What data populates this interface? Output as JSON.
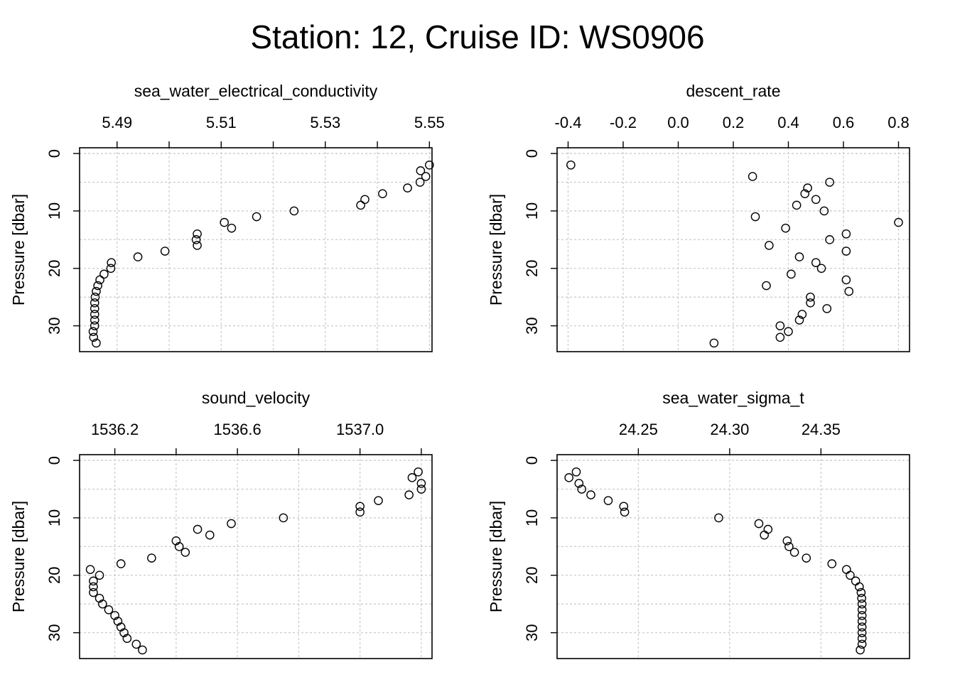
{
  "title": "Station: 12, Cruise ID: WS0906",
  "chart_data": [
    {
      "type": "scatter",
      "title": "sea_water_electrical_conductivity",
      "xlabel": "sea_water_electrical_conductivity",
      "ylabel": "Pressure [dbar]",
      "xlim": [
        5.4828,
        5.5505
      ],
      "ylim": [
        34.5,
        -1
      ],
      "x_axis_position": "top",
      "y_reversed": true,
      "grid": true,
      "x_ticks": [
        5.49,
        5.5,
        5.51,
        5.52,
        5.53,
        5.54,
        5.55
      ],
      "x_tick_labels": [
        "5.49",
        "",
        "5.51",
        "",
        "5.53",
        "",
        "5.55"
      ],
      "y_ticks": [
        0,
        10,
        20,
        30
      ],
      "y_tick_labels": [
        "0",
        "10",
        "20",
        "30"
      ],
      "y_grid": [
        0,
        5,
        10,
        15,
        20,
        25,
        30
      ],
      "points": [
        {
          "x": 5.55,
          "y": 2
        },
        {
          "x": 5.5483,
          "y": 3
        },
        {
          "x": 5.5493,
          "y": 4
        },
        {
          "x": 5.5482,
          "y": 5
        },
        {
          "x": 5.5458,
          "y": 6
        },
        {
          "x": 5.541,
          "y": 7
        },
        {
          "x": 5.5376,
          "y": 8
        },
        {
          "x": 5.5368,
          "y": 9
        },
        {
          "x": 5.524,
          "y": 10
        },
        {
          "x": 5.5168,
          "y": 11
        },
        {
          "x": 5.5106,
          "y": 12
        },
        {
          "x": 5.512,
          "y": 13
        },
        {
          "x": 5.5054,
          "y": 14
        },
        {
          "x": 5.5052,
          "y": 15
        },
        {
          "x": 5.5054,
          "y": 16
        },
        {
          "x": 5.4992,
          "y": 17
        },
        {
          "x": 5.494,
          "y": 18
        },
        {
          "x": 5.4889,
          "y": 19
        },
        {
          "x": 5.4888,
          "y": 20
        },
        {
          "x": 5.4875,
          "y": 21
        },
        {
          "x": 5.4867,
          "y": 22
        },
        {
          "x": 5.4863,
          "y": 23
        },
        {
          "x": 5.486,
          "y": 24
        },
        {
          "x": 5.4858,
          "y": 25
        },
        {
          "x": 5.4857,
          "y": 26
        },
        {
          "x": 5.4857,
          "y": 27
        },
        {
          "x": 5.4857,
          "y": 28
        },
        {
          "x": 5.4857,
          "y": 29
        },
        {
          "x": 5.4857,
          "y": 30
        },
        {
          "x": 5.4854,
          "y": 31
        },
        {
          "x": 5.4855,
          "y": 32
        },
        {
          "x": 5.486,
          "y": 33
        }
      ]
    },
    {
      "type": "scatter",
      "title": "descent_rate",
      "xlabel": "descent_rate",
      "ylabel": "Pressure [dbar]",
      "xlim": [
        -0.44,
        0.84
      ],
      "ylim": [
        34.5,
        -1
      ],
      "x_axis_position": "top",
      "y_reversed": true,
      "grid": true,
      "x_ticks": [
        -0.4,
        -0.2,
        0.0,
        0.2,
        0.4,
        0.6,
        0.8
      ],
      "x_tick_labels": [
        "-0.4",
        "-0.2",
        "0.0",
        "0.2",
        "0.4",
        "0.6",
        "0.8"
      ],
      "y_ticks": [
        0,
        10,
        20,
        30
      ],
      "y_tick_labels": [
        "0",
        "10",
        "20",
        "30"
      ],
      "y_grid": [
        0,
        5,
        10,
        15,
        20,
        25,
        30
      ],
      "points": [
        {
          "x": -0.39,
          "y": 2
        },
        {
          "x": 0.27,
          "y": 4
        },
        {
          "x": 0.55,
          "y": 5
        },
        {
          "x": 0.47,
          "y": 6
        },
        {
          "x": 0.46,
          "y": 7
        },
        {
          "x": 0.5,
          "y": 8
        },
        {
          "x": 0.43,
          "y": 9
        },
        {
          "x": 0.53,
          "y": 10
        },
        {
          "x": 0.28,
          "y": 11
        },
        {
          "x": 0.8,
          "y": 12
        },
        {
          "x": 0.39,
          "y": 13
        },
        {
          "x": 0.61,
          "y": 14
        },
        {
          "x": 0.55,
          "y": 15
        },
        {
          "x": 0.33,
          "y": 16
        },
        {
          "x": 0.61,
          "y": 17
        },
        {
          "x": 0.44,
          "y": 18
        },
        {
          "x": 0.5,
          "y": 19
        },
        {
          "x": 0.52,
          "y": 20
        },
        {
          "x": 0.41,
          "y": 21
        },
        {
          "x": 0.61,
          "y": 22
        },
        {
          "x": 0.32,
          "y": 23
        },
        {
          "x": 0.62,
          "y": 24
        },
        {
          "x": 0.48,
          "y": 25
        },
        {
          "x": 0.48,
          "y": 26
        },
        {
          "x": 0.54,
          "y": 27
        },
        {
          "x": 0.45,
          "y": 28
        },
        {
          "x": 0.44,
          "y": 29
        },
        {
          "x": 0.37,
          "y": 30
        },
        {
          "x": 0.4,
          "y": 31
        },
        {
          "x": 0.37,
          "y": 32
        },
        {
          "x": 0.13,
          "y": 33
        }
      ]
    },
    {
      "type": "scatter",
      "title": "sound_velocity",
      "xlabel": "sound_velocity",
      "ylabel": "Pressure [dbar]",
      "xlim": [
        1536.085,
        1537.235
      ],
      "ylim": [
        34.5,
        -1
      ],
      "x_axis_position": "top",
      "y_reversed": true,
      "grid": true,
      "x_ticks": [
        1536.2,
        1536.4,
        1536.6,
        1536.8,
        1537.0,
        1537.2
      ],
      "x_tick_labels": [
        "1536.2",
        "",
        "1536.6",
        "",
        "1537.0",
        ""
      ],
      "y_ticks": [
        0,
        10,
        20,
        30
      ],
      "y_tick_labels": [
        "0",
        "10",
        "20",
        "30"
      ],
      "y_grid": [
        0,
        5,
        10,
        15,
        20,
        25,
        30
      ],
      "points": [
        {
          "x": 1537.19,
          "y": 2
        },
        {
          "x": 1537.17,
          "y": 3
        },
        {
          "x": 1537.2,
          "y": 4
        },
        {
          "x": 1537.2,
          "y": 5
        },
        {
          "x": 1537.16,
          "y": 6
        },
        {
          "x": 1537.06,
          "y": 7
        },
        {
          "x": 1537.0,
          "y": 8
        },
        {
          "x": 1537.0,
          "y": 9
        },
        {
          "x": 1536.75,
          "y": 10
        },
        {
          "x": 1536.58,
          "y": 11
        },
        {
          "x": 1536.47,
          "y": 12
        },
        {
          "x": 1536.51,
          "y": 13
        },
        {
          "x": 1536.4,
          "y": 14
        },
        {
          "x": 1536.41,
          "y": 15
        },
        {
          "x": 1536.43,
          "y": 16
        },
        {
          "x": 1536.32,
          "y": 17
        },
        {
          "x": 1536.22,
          "y": 18
        },
        {
          "x": 1536.12,
          "y": 19
        },
        {
          "x": 1536.15,
          "y": 20
        },
        {
          "x": 1536.13,
          "y": 21
        },
        {
          "x": 1536.13,
          "y": 22
        },
        {
          "x": 1536.13,
          "y": 23
        },
        {
          "x": 1536.15,
          "y": 24
        },
        {
          "x": 1536.16,
          "y": 25
        },
        {
          "x": 1536.18,
          "y": 26
        },
        {
          "x": 1536.2,
          "y": 27
        },
        {
          "x": 1536.21,
          "y": 28
        },
        {
          "x": 1536.22,
          "y": 29
        },
        {
          "x": 1536.23,
          "y": 30
        },
        {
          "x": 1536.24,
          "y": 31
        },
        {
          "x": 1536.27,
          "y": 32
        },
        {
          "x": 1536.29,
          "y": 33
        }
      ]
    },
    {
      "type": "scatter",
      "title": "sea_water_sigma_t",
      "xlabel": "sea_water_sigma_t",
      "ylabel": "Pressure [dbar]",
      "xlim": [
        24.2055,
        24.3985
      ],
      "ylim": [
        34.5,
        -1
      ],
      "x_axis_position": "top",
      "y_reversed": true,
      "grid": true,
      "x_ticks": [
        24.25,
        24.3,
        24.35
      ],
      "x_tick_labels": [
        "24.25",
        "24.30",
        "24.35"
      ],
      "y_ticks": [
        0,
        10,
        20,
        30
      ],
      "y_tick_labels": [
        "0",
        "10",
        "20",
        "30"
      ],
      "y_grid": [
        0,
        5,
        10,
        15,
        20,
        25,
        30
      ],
      "points": [
        {
          "x": 24.216,
          "y": 2
        },
        {
          "x": 24.212,
          "y": 3
        },
        {
          "x": 24.2175,
          "y": 4
        },
        {
          "x": 24.219,
          "y": 5
        },
        {
          "x": 24.224,
          "y": 6
        },
        {
          "x": 24.2335,
          "y": 7
        },
        {
          "x": 24.242,
          "y": 8
        },
        {
          "x": 24.2425,
          "y": 9
        },
        {
          "x": 24.294,
          "y": 10
        },
        {
          "x": 24.316,
          "y": 11
        },
        {
          "x": 24.321,
          "y": 12
        },
        {
          "x": 24.319,
          "y": 13
        },
        {
          "x": 24.3315,
          "y": 14
        },
        {
          "x": 24.3325,
          "y": 15
        },
        {
          "x": 24.3355,
          "y": 16
        },
        {
          "x": 24.342,
          "y": 17
        },
        {
          "x": 24.356,
          "y": 18
        },
        {
          "x": 24.364,
          "y": 19
        },
        {
          "x": 24.366,
          "y": 20
        },
        {
          "x": 24.369,
          "y": 21
        },
        {
          "x": 24.371,
          "y": 22
        },
        {
          "x": 24.372,
          "y": 23
        },
        {
          "x": 24.3723,
          "y": 24
        },
        {
          "x": 24.3725,
          "y": 25
        },
        {
          "x": 24.3725,
          "y": 26
        },
        {
          "x": 24.3725,
          "y": 27
        },
        {
          "x": 24.3725,
          "y": 28
        },
        {
          "x": 24.3725,
          "y": 29
        },
        {
          "x": 24.3725,
          "y": 30
        },
        {
          "x": 24.3725,
          "y": 31
        },
        {
          "x": 24.3725,
          "y": 32
        },
        {
          "x": 24.3715,
          "y": 33
        }
      ]
    }
  ]
}
